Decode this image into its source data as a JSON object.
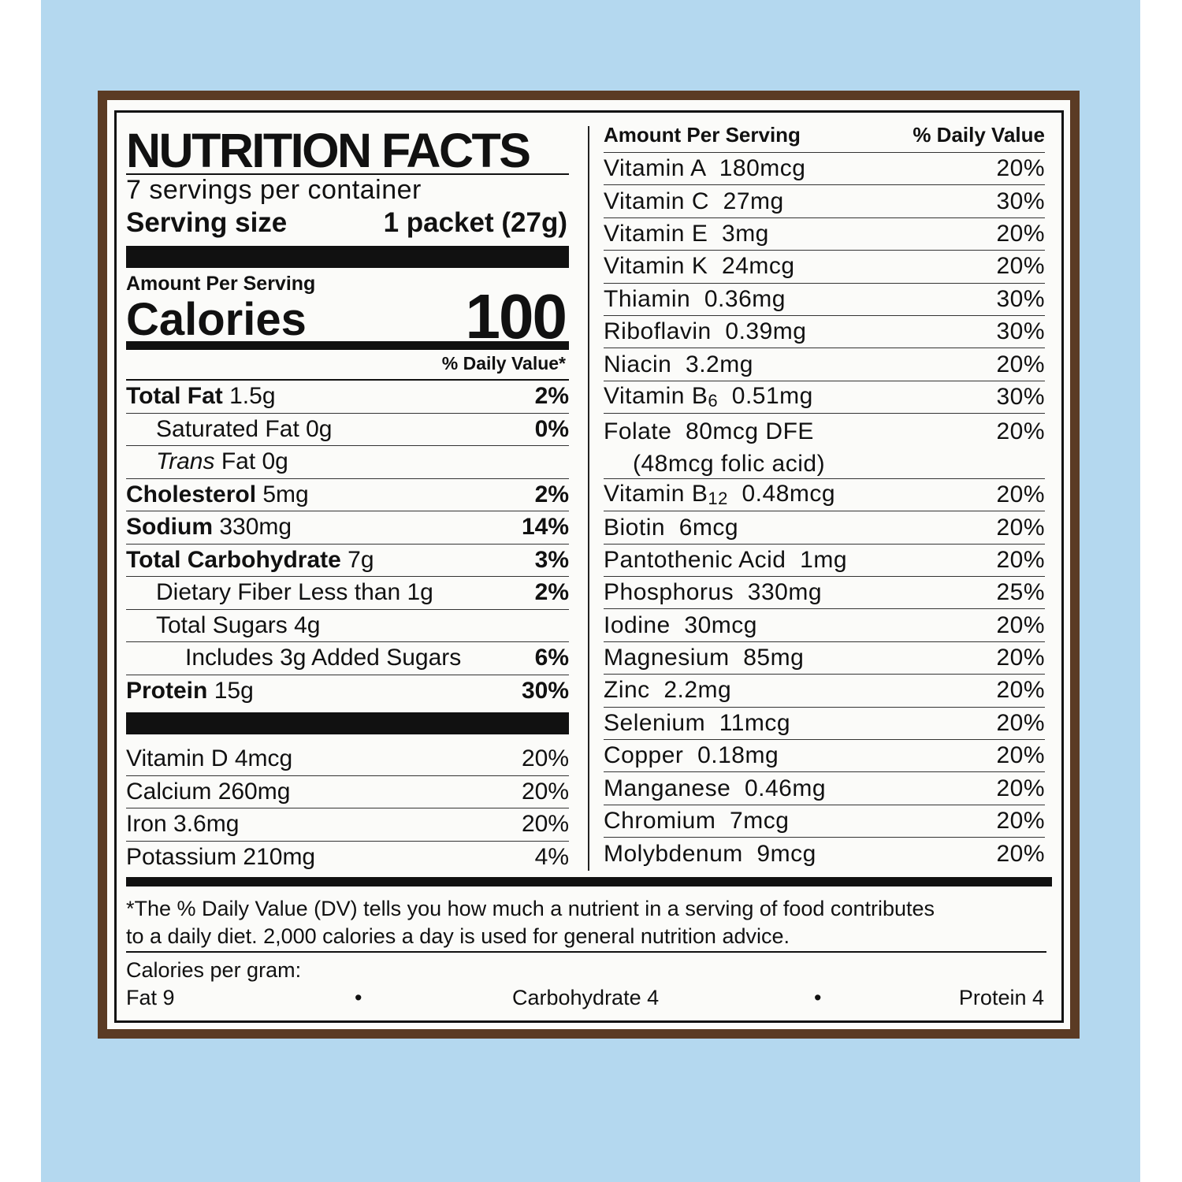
{
  "label": {
    "title": "NUTRITION FACTS",
    "servings": "7 servings per container",
    "serving_size_label": "Serving size",
    "serving_size_value": "1 packet (27g)",
    "amount_per_serving": "Amount Per Serving",
    "calories_label": "Calories",
    "calories_value": "100",
    "daily_value_header": "% Daily Value*",
    "nutrients": [
      {
        "name": "Total Fat",
        "amount": "1.5g",
        "dv": "2%"
      },
      {
        "name": "Saturated Fat",
        "amount": "0g",
        "dv": "0%"
      },
      {
        "name": "Trans",
        "amount": "Fat 0g",
        "dv": ""
      },
      {
        "name": "Cholesterol",
        "amount": "5mg",
        "dv": "2%"
      },
      {
        "name": "Sodium",
        "amount": "330mg",
        "dv": "14%"
      },
      {
        "name": "Total Carbohydrate",
        "amount": "7g",
        "dv": "3%"
      },
      {
        "name": "Dietary Fiber",
        "amount": "Less than 1g",
        "dv": "2%"
      },
      {
        "name": "Total Sugars",
        "amount": "4g",
        "dv": ""
      },
      {
        "name": "Includes 3g Added Sugars",
        "amount": "",
        "dv": "6%"
      },
      {
        "name": "Protein",
        "amount": "15g",
        "dv": "30%"
      }
    ],
    "minerals_left": [
      {
        "name": "Vitamin D 4mcg",
        "dv": "20%"
      },
      {
        "name": "Calcium 260mg",
        "dv": "20%"
      },
      {
        "name": "Iron 3.6mg",
        "dv": "20%"
      },
      {
        "name": "Potassium 210mg",
        "dv": "4%"
      }
    ],
    "right_header_amount": "Amount Per Serving",
    "right_header_dv": "% Daily Value",
    "right": [
      {
        "name": "Vitamin A  180mcg",
        "dv": "20%"
      },
      {
        "name": "Vitamin C  27mg",
        "dv": "30%"
      },
      {
        "name": "Vitamin E  3mg",
        "dv": "20%"
      },
      {
        "name": "Vitamin K  24mcg",
        "dv": "20%"
      },
      {
        "name": "Thiamin  0.36mg",
        "dv": "30%"
      },
      {
        "name": "Riboflavin  0.39mg",
        "dv": "30%"
      },
      {
        "name": "Niacin  3.2mg",
        "dv": "20%"
      },
      {
        "name": "Vitamin B",
        "sub": "6",
        "rest": "  0.51mg",
        "dv": "30%"
      },
      {
        "name": "Folate  80mcg DFE",
        "line2": "(48mcg folic acid)",
        "dv": "20%"
      },
      {
        "name": "Vitamin B",
        "sub": "12",
        "rest": "  0.48mcg",
        "dv": "20%"
      },
      {
        "name": "Biotin  6mcg",
        "dv": "20%"
      },
      {
        "name": "Pantothenic Acid  1mg",
        "dv": "20%"
      },
      {
        "name": "Phosphorus  330mg",
        "dv": "25%"
      },
      {
        "name": "Iodine  30mcg",
        "dv": "20%"
      },
      {
        "name": "Magnesium  85mg",
        "dv": "20%"
      },
      {
        "name": "Zinc  2.2mg",
        "dv": "20%"
      },
      {
        "name": "Selenium  11mcg",
        "dv": "20%"
      },
      {
        "name": "Copper  0.18mg",
        "dv": "20%"
      },
      {
        "name": "Manganese  0.46mg",
        "dv": "20%"
      },
      {
        "name": "Chromium  7mcg",
        "dv": "20%"
      },
      {
        "name": "Molybdenum  9mcg",
        "dv": "20%"
      }
    ],
    "footnote_1": "*The % Daily Value (DV) tells you how much a nutrient in a serving of food contributes",
    "footnote_2": "to a daily diet. 2,000 calories a day is used for general nutrition advice.",
    "calories_per_gram": "Calories per gram:",
    "fat": "Fat 9",
    "carbohydrate": "Carbohydrate 4",
    "protein": "Protein 4",
    "bullet": "•"
  },
  "colors": {
    "background": "#b4d8ef",
    "frame": "#5b3b24",
    "ink": "#111111"
  }
}
